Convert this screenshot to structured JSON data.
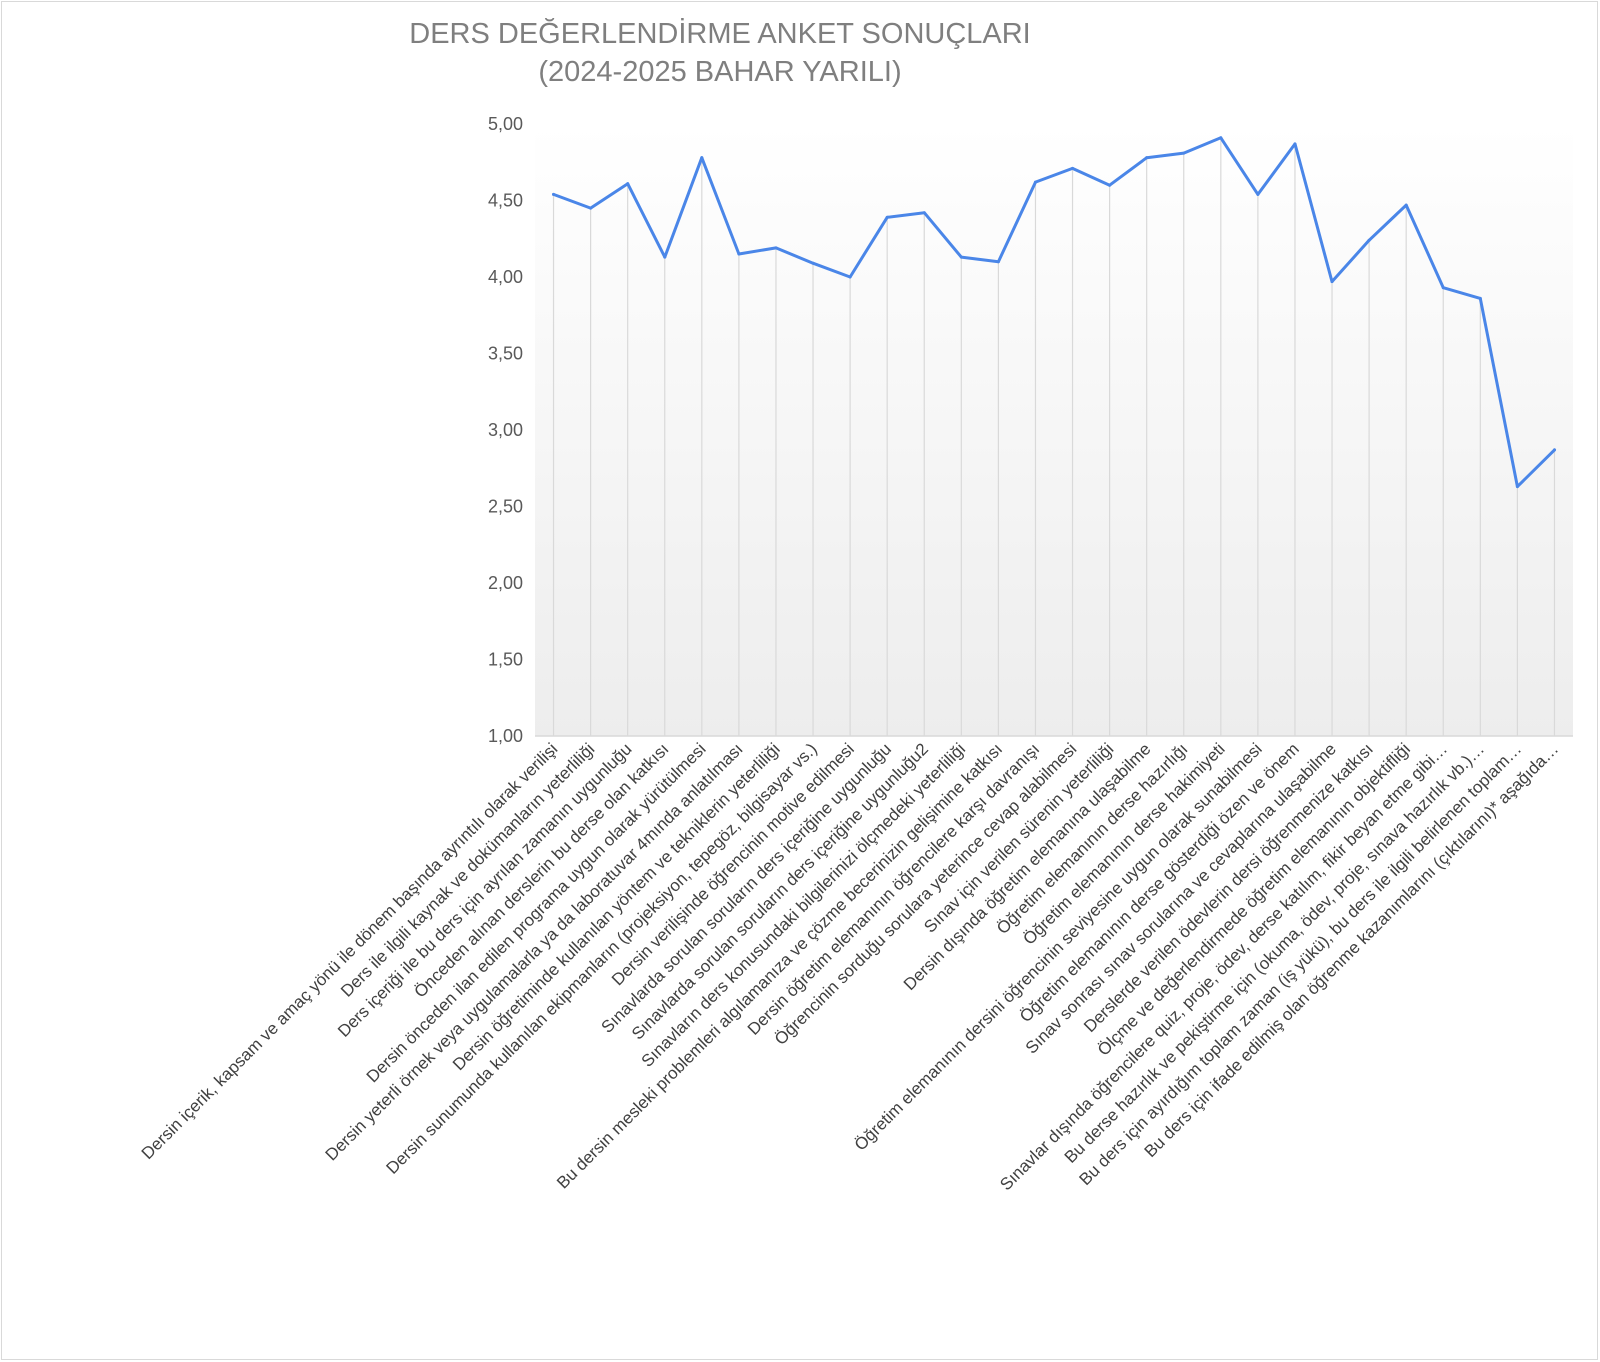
{
  "chart_data": {
    "type": "line",
    "title": "DERS DEĞERLENDİRME ANKET SONUÇLARI",
    "subtitle": "(2024-2025 BAHAR YARILI)",
    "ylim": [
      1.0,
      5.0
    ],
    "yticks": [
      "1,00",
      "1,50",
      "2,00",
      "2,50",
      "3,00",
      "3,50",
      "4,00",
      "4,50",
      "5,00"
    ],
    "grid": false,
    "legend": "none",
    "colors": {
      "line": "#4a86e8",
      "drop_lines": "#d9d9d9",
      "axis": "#d9d9d9"
    },
    "categories": [
      "Dersin içerik, kapsam ve amaç yönü ile dönem başında ayrıntılı olarak verilişi",
      "Ders ile ilgili kaynak ve dokümanların yeterliliği",
      "Ders içeriği ile bu ders için ayrılan zamanın uygunluğu",
      "Önceden alınan derslerin bu derse olan katkısı",
      "Dersin önceden ilan edilen programa uygun olarak yürütülmesi",
      "Dersin yeterli örnek veya uygulamalarla ya da laboratuvar 4mında anlatılması",
      "Dersin öğretiminde kullanılan yöntem ve tekniklerin yeterliliği",
      "Dersin sunumunda kullanılan ekipmanların (projeksiyon, tepegöz, bilgisayar vs.)",
      "Dersin verilişinde öğrencinin motive edilmesi",
      "Sınavlarda sorulan soruların ders içeriğine uygunluğu",
      "Sınavlarda sorulan soruların ders içeriğine uygunluğu2",
      "Sınavların ders konusundaki bilgilerinizi ölçmedeki yeterliliği",
      "Bu dersin mesleki problemleri algılamanıza ve çözme becerinizin gelişimine katkısı",
      "Dersin öğretim elemanının öğrencilere karşı davranışı",
      "Öğrencinin sorduğu sorulara yeterince cevap alabilmesi",
      "Sınav için verilen sürenin yeterliliği",
      "Dersin dışında öğretim elemanına ulaşabilme",
      "Öğretim elemanının derse hazırlığı",
      "Öğretim elemanının derse hakimiyeti",
      "Öğretim elemanının dersini öğrencinin seviyesine uygun olarak sunabilmesi",
      "Öğretim elemanının derse gösterdiği özen ve önem",
      "Sınav sonrası sınav sorularına ve cevaplarına ulaşabilme",
      "Derslerde verilen ödevlerin dersi öğrenmenize katkısı",
      "Ölçme ve değerlendirmede öğretim elemanının objektifliği",
      "Sınavlar dışında öğrencilere quiz, proje, ödev, derse katılım, fikir beyan etme gibi…",
      "Bu derse hazırlık ve pekiştirme için (okuma, ödev, proje, sınava hazırlık vb.)…",
      "Bu ders için ayırdığım toplam zaman (iş yükü), bu ders ile ilgili belirlenen toplam…",
      "Bu ders için ifade edilmiş olan öğrenme kazanımlarını (çıktılarını)* aşağıda…"
    ],
    "values": [
      4.54,
      4.45,
      4.61,
      4.13,
      4.78,
      4.15,
      4.19,
      4.09,
      4.0,
      4.39,
      4.42,
      4.13,
      4.1,
      4.62,
      4.71,
      4.6,
      4.78,
      4.81,
      4.91,
      4.54,
      4.87,
      3.97,
      4.24,
      4.47,
      3.93,
      3.86,
      2.63,
      2.87
    ]
  }
}
